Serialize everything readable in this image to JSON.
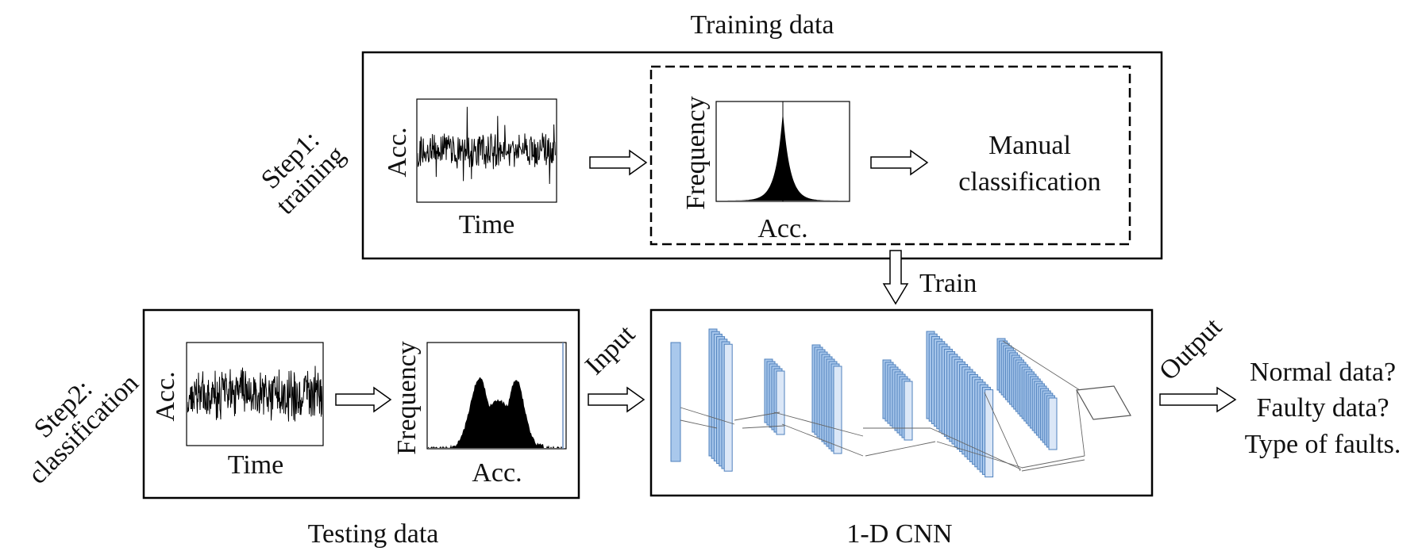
{
  "title_training": "Training data",
  "title_testing": "Testing data",
  "title_cnn": "1-D CNN",
  "step1": {
    "line1": "Step1:",
    "line2": "training"
  },
  "step2": {
    "line1": "Step2:",
    "line2": "classification"
  },
  "training_block": {
    "time_plot": {
      "ylabel": "Acc.",
      "xlabel": "Time"
    },
    "hist_plot": {
      "ylabel": "Frequency",
      "xlabel": "Acc."
    },
    "manual_line1": "Manual",
    "manual_line2": "classification"
  },
  "train_arrow_label": "Train",
  "testing_block": {
    "time_plot": {
      "ylabel": "Acc.",
      "xlabel": "Time"
    },
    "hist_plot": {
      "ylabel": "Frequency",
      "xlabel": "Acc."
    }
  },
  "input_label": "Input",
  "output_label": "Output",
  "outputs": [
    "Normal data?",
    "Faulty data?",
    "Type of faults."
  ],
  "colors": {
    "layer_fill": "#a9c8ec",
    "layer_stroke": "#4f81bd",
    "layer_last": "#dbe7f7",
    "ink": "#000000"
  }
}
